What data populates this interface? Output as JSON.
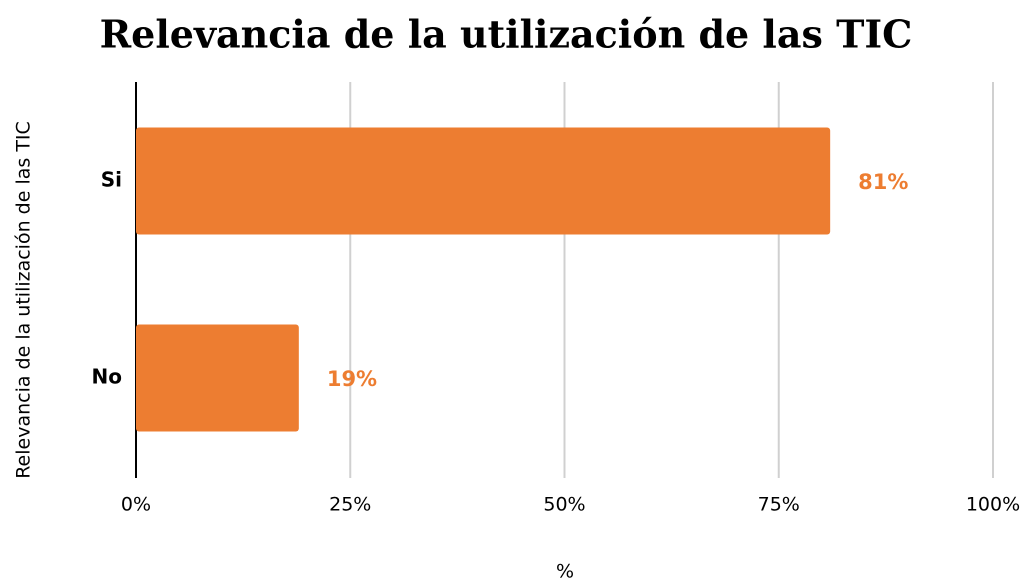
{
  "chart_data": {
    "type": "bar",
    "orientation": "horizontal",
    "title": "Relevancia de la utilización de las TIC",
    "x_label": "%",
    "y_label": "Relevancia de la utilización de las TIC",
    "categories": [
      "Si",
      "No"
    ],
    "values": [
      81,
      19
    ],
    "value_labels": [
      "81%",
      "19%"
    ],
    "color": "#ed7d31",
    "xlim": [
      0,
      100
    ],
    "xticks": [
      {
        "value": 0,
        "label": "0%"
      },
      {
        "value": 25,
        "label": "25%"
      },
      {
        "value": 50,
        "label": "50%"
      },
      {
        "value": 75,
        "label": "75%"
      },
      {
        "value": 100,
        "label": "100%"
      }
    ],
    "grid": true
  }
}
